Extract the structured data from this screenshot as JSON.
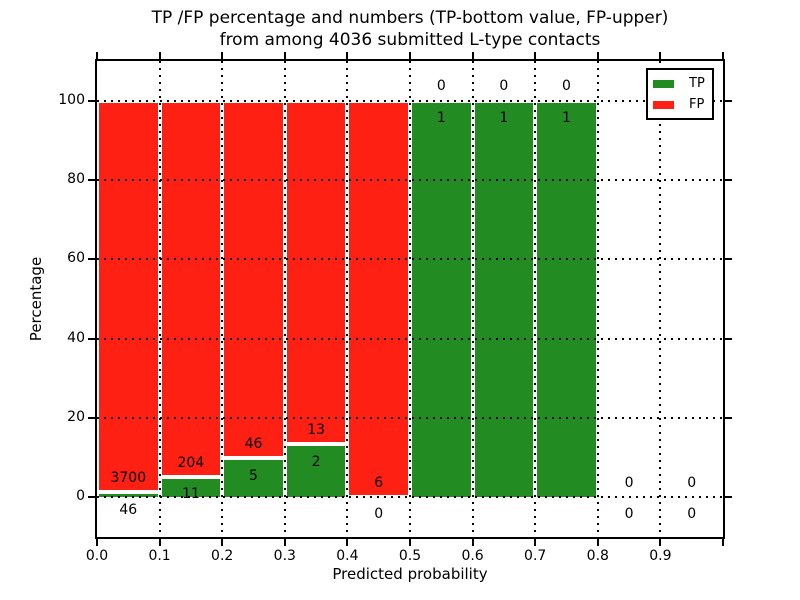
{
  "title": {
    "line1": "TP /FP percentage and numbers (TP-bottom value, FP-upper)",
    "line2": "from among 4036 submitted L-type contacts"
  },
  "colors": {
    "tp": "#228b22",
    "fp": "#ff2014",
    "grid": "#000000",
    "background": "#ffffff"
  },
  "legend": {
    "position": "upper right",
    "entries": [
      {
        "label": "TP",
        "color": "#228b22"
      },
      {
        "label": "FP",
        "color": "#ff2014"
      }
    ]
  },
  "chart_data": {
    "type": "bar",
    "subtype": "stacked-percentage-histogram",
    "title": "TP /FP percentage and numbers (TP-bottom value, FP-upper) from among 4036 submitted L-type contacts",
    "xlabel": "Predicted probability",
    "ylabel": "Percentage",
    "xlim": [
      0.0,
      1.0
    ],
    "ylim": [
      -10,
      110
    ],
    "xticks": [
      "0.0",
      "0.1",
      "0.2",
      "0.3",
      "0.4",
      "0.5",
      "0.6",
      "0.7",
      "0.8",
      "0.9"
    ],
    "yticks": [
      0,
      20,
      40,
      60,
      80,
      100
    ],
    "grid": "dotted",
    "legend_position": "upper right",
    "series": [
      {
        "name": "TP",
        "color": "#228b22",
        "position": "bottom"
      },
      {
        "name": "FP",
        "color": "#ff2014",
        "position": "top"
      }
    ],
    "bins": [
      {
        "range": [
          0.0,
          0.1
        ],
        "tp_count": 46,
        "fp_count": 3700,
        "tp_pct": 1.23,
        "fp_pct": 98.77
      },
      {
        "range": [
          0.1,
          0.2
        ],
        "tp_count": 11,
        "fp_count": 204,
        "tp_pct": 5.12,
        "fp_pct": 94.88
      },
      {
        "range": [
          0.2,
          0.3
        ],
        "tp_count": 5,
        "fp_count": 46,
        "tp_pct": 9.8,
        "fp_pct": 90.2
      },
      {
        "range": [
          0.3,
          0.4
        ],
        "tp_count": 2,
        "fp_count": 13,
        "tp_pct": 13.33,
        "fp_pct": 86.67
      },
      {
        "range": [
          0.4,
          0.5
        ],
        "tp_count": 0,
        "fp_count": 6,
        "tp_pct": 0,
        "fp_pct": 100
      },
      {
        "range": [
          0.5,
          0.6
        ],
        "tp_count": 1,
        "fp_count": 0,
        "tp_pct": 100,
        "fp_pct": 0
      },
      {
        "range": [
          0.6,
          0.7
        ],
        "tp_count": 1,
        "fp_count": 0,
        "tp_pct": 100,
        "fp_pct": 0
      },
      {
        "range": [
          0.7,
          0.8
        ],
        "tp_count": 1,
        "fp_count": 0,
        "tp_pct": 100,
        "fp_pct": 0
      },
      {
        "range": [
          0.8,
          0.9
        ],
        "tp_count": 0,
        "fp_count": 0,
        "tp_pct": null,
        "fp_pct": null
      },
      {
        "range": [
          0.9,
          1.0
        ],
        "tp_count": 0,
        "fp_count": 0,
        "tp_pct": null,
        "fp_pct": null
      }
    ]
  }
}
